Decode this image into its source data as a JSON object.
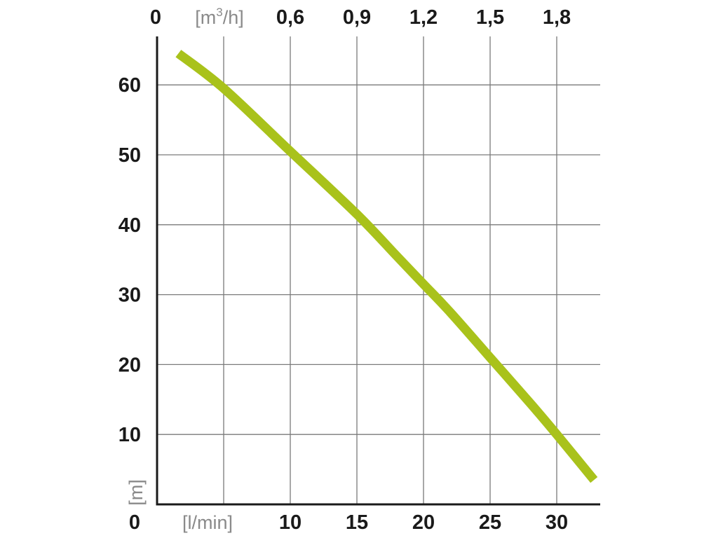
{
  "chart_data": {
    "type": "line",
    "x_bottom": {
      "unit_label": "[l/min]",
      "ticks": [
        {
          "value": 0,
          "label": "0"
        },
        {
          "value": 10,
          "label": "10"
        },
        {
          "value": 15,
          "label": "15"
        },
        {
          "value": 20,
          "label": "20"
        },
        {
          "value": 25,
          "label": "25"
        },
        {
          "value": 30,
          "label": "30"
        }
      ],
      "range": [
        0,
        33.3
      ]
    },
    "x_top": {
      "unit_label_prefix": "[m",
      "unit_label_sup": "3",
      "unit_label_suffix": "/h]",
      "ticks": [
        {
          "value": 0,
          "label": "0"
        },
        {
          "value": 0.6,
          "label": "0,6"
        },
        {
          "value": 0.9,
          "label": "0,9"
        },
        {
          "value": 1.2,
          "label": "1,2"
        },
        {
          "value": 1.5,
          "label": "1,5"
        },
        {
          "value": 1.8,
          "label": "1,8"
        }
      ]
    },
    "y": {
      "unit_label": "[m]",
      "ticks": [
        {
          "value": 0,
          "label": "0"
        },
        {
          "value": 10,
          "label": "10"
        },
        {
          "value": 20,
          "label": "20"
        },
        {
          "value": 30,
          "label": "30"
        },
        {
          "value": 40,
          "label": "40"
        },
        {
          "value": 50,
          "label": "50"
        },
        {
          "value": 60,
          "label": "60"
        }
      ],
      "range": [
        0,
        66
      ]
    },
    "grid": true,
    "grid_x_values": [
      5,
      10,
      15,
      20,
      25,
      30
    ],
    "grid_y_values": [
      10,
      20,
      30,
      40,
      50,
      60
    ],
    "series": [
      {
        "color": "#a9c21b",
        "points": [
          {
            "x": 1.6,
            "y": 64.5
          },
          {
            "x": 5,
            "y": 59.5
          },
          {
            "x": 10,
            "y": 50.5
          },
          {
            "x": 15,
            "y": 41.5
          },
          {
            "x": 18,
            "y": 35.5
          },
          {
            "x": 20,
            "y": 31.5
          },
          {
            "x": 22,
            "y": 27.5
          },
          {
            "x": 25,
            "y": 21
          },
          {
            "x": 28,
            "y": 14.5
          },
          {
            "x": 30,
            "y": 10
          },
          {
            "x": 32.8,
            "y": 3.5
          }
        ]
      }
    ]
  },
  "colors": {
    "axis": "#1a1a1a",
    "grid": "#7a7a7a",
    "unit_text": "#8a8a8a",
    "tick_text": "#1a1a1a",
    "curve": "#a9c21b"
  }
}
